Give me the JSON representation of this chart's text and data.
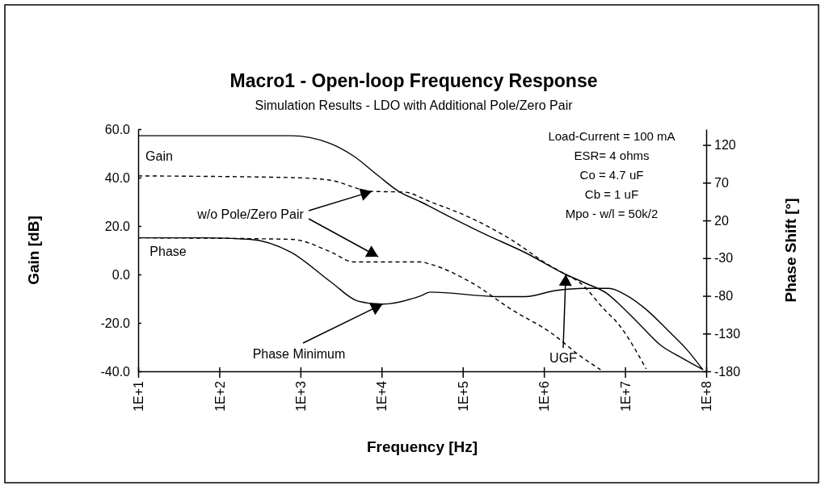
{
  "chart_data": {
    "type": "line",
    "title": "Macro1 - Open-loop Frequency Response",
    "subtitle": "Simulation Results - LDO with Additional Pole/Zero Pair",
    "xlabel": "Frequency [Hz]",
    "ylabel": "Gain [dB]",
    "y2label": "Phase Shift [°]",
    "log": "x",
    "grid": false,
    "marker": "none",
    "xlim": [
      10,
      100000000
    ],
    "xticks": [
      {
        "value": 10,
        "label": "1E+1"
      },
      {
        "value": 100,
        "label": "1E+2"
      },
      {
        "value": 1000,
        "label": "1E+3"
      },
      {
        "value": 10000,
        "label": "1E+4"
      },
      {
        "value": 100000,
        "label": "1E+5"
      },
      {
        "value": 1000000,
        "label": "1E+6"
      },
      {
        "value": 10000000,
        "label": "1E+7"
      },
      {
        "value": 100000000,
        "label": "1E+8"
      }
    ],
    "ylim": [
      -40,
      60
    ],
    "yticks": [
      {
        "value": -40,
        "label": "-40.0"
      },
      {
        "value": -20,
        "label": "-20.0"
      },
      {
        "value": 0,
        "label": "0.0"
      },
      {
        "value": 20,
        "label": "20.0"
      },
      {
        "value": 40,
        "label": "40.0"
      },
      {
        "value": 60,
        "label": "60.0"
      }
    ],
    "y2lim": [
      -180,
      141
    ],
    "y2ticks": [
      -180,
      -130,
      -80,
      -30,
      20,
      70,
      120
    ],
    "series": [
      {
        "color": "#000000",
        "line_style": "solid",
        "x": [
          10,
          759,
          2239,
          4467,
          8913,
          16218,
          30200,
          74100,
          186000,
          589000,
          1860000,
          3470000,
          5890000,
          8510000,
          14500000,
          26900000,
          49000000,
          91200000
        ],
        "values": [
          57.3,
          57.3,
          54.3,
          49,
          41,
          34.3,
          30,
          23.3,
          16.7,
          9,
          0,
          -4,
          -7.7,
          -12.3,
          -20,
          -29,
          -34.3,
          -39.3
        ]
      },
      {
        "color": "#000000",
        "line_style": "dashed",
        "x": [
          10,
          759,
          2239,
          7590,
          19050,
          39800,
          126000,
          398000,
          1100000,
          1860000,
          2750000,
          5500000,
          8510000,
          18200000
        ],
        "values": [
          40.7,
          40,
          39,
          34.3,
          34,
          30,
          23.3,
          14.3,
          4.3,
          0,
          -3.3,
          -14.3,
          -21,
          -39
        ]
      },
      {
        "color": "#000000",
        "line_style": "dashed",
        "axis": "y2",
        "x": [
          10,
          759,
          2399,
          4467,
          30200,
          39800,
          126000,
          398000,
          1260000,
          2750000,
          5000000
        ],
        "values": [
          -3,
          -5,
          -22,
          -35,
          -35,
          -38,
          -62,
          -98,
          -130,
          -159,
          -178
        ]
      },
      {
        "color": "#000000",
        "line_style": "solid",
        "axis": "y2",
        "x": [
          10,
          61.2,
          240,
          759,
          2399,
          5130,
          10230,
          30200,
          39800,
          275000,
          589000,
          1380000,
          3160000,
          6300000,
          10700000,
          18200000,
          33900000,
          57500000,
          91200000
        ],
        "values": [
          -3,
          -3,
          -5,
          -22,
          -62,
          -87,
          -91,
          -80,
          -75,
          -81,
          -81,
          -73,
          -70,
          -70,
          -80,
          -98,
          -126,
          -151,
          -178
        ]
      }
    ],
    "annotations": [
      "Gain",
      "Phase",
      {
        "text": "w/o Pole/Zero Pair",
        "x": 7590,
        "y": 34.3
      },
      {
        "text": "Phase Minimum",
        "x": 10230,
        "y": -12.3
      },
      {
        "text": "UGF",
        "x": 1860000,
        "y": 0
      },
      "Load-Current = 100 mA",
      "ESR= 4 ohms",
      "Co = 4.7 uF",
      "Cb = 1 uF",
      "Mpo - w/l = 50k/2"
    ]
  }
}
